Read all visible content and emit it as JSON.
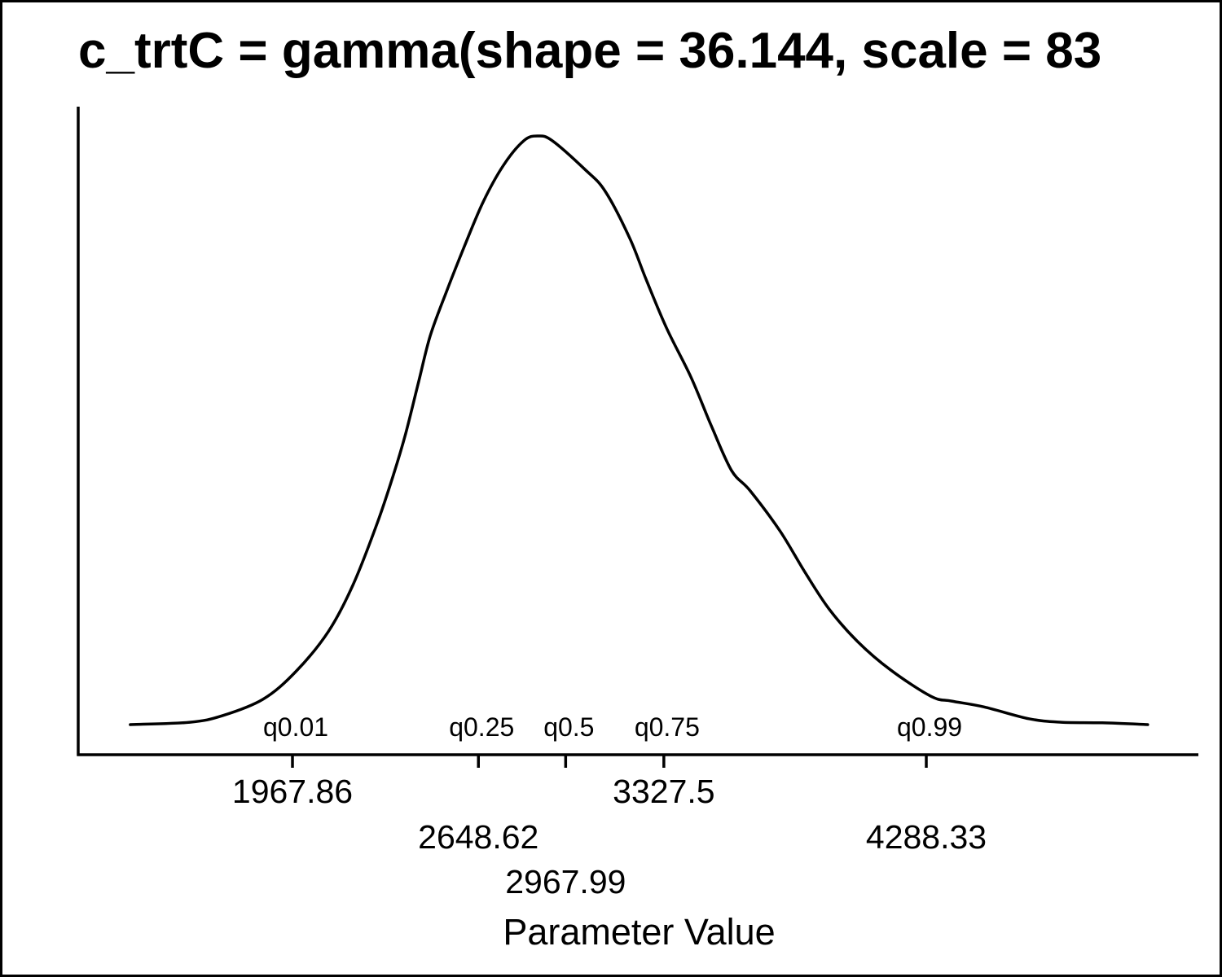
{
  "chart_data": {
    "type": "line",
    "title": "c_trtC = gamma(shape = 36.144, scale = 83",
    "xlabel": "Parameter Value",
    "ylabel": "",
    "xlim": [
      1183.4,
      5284.5
    ],
    "ylim": [
      -0.0512,
      1.0498
    ],
    "y_units": "relative density (peak = 1)",
    "grid": false,
    "legend": "none",
    "line_color": "#000000",
    "series": [
      {
        "name": "density",
        "x": [
          1374,
          1592,
          1711,
          1860,
          1980,
          2099,
          2189,
          2278,
          2338,
          2382,
          2427,
          2472,
          2532,
          2597,
          2666,
          2740,
          2815,
          2866,
          2919,
          3039,
          3113,
          3203,
          3262,
          3337,
          3426,
          3501,
          3575,
          3644,
          3754,
          3844,
          3933,
          4037,
          4157,
          4306,
          4381,
          4500,
          4664,
          4783,
          4933,
          5099
        ],
        "y": [
          0.0,
          0.004,
          0.015,
          0.043,
          0.09,
          0.158,
          0.237,
          0.342,
          0.425,
          0.494,
          0.577,
          0.66,
          0.736,
          0.812,
          0.888,
          0.95,
          0.992,
          1.0,
          0.992,
          0.943,
          0.906,
          0.826,
          0.757,
          0.674,
          0.591,
          0.508,
          0.432,
          0.397,
          0.328,
          0.259,
          0.196,
          0.141,
          0.093,
          0.048,
          0.04,
          0.03,
          0.01,
          0.004,
          0.003,
          0.0
        ]
      }
    ],
    "quantiles": [
      {
        "label": "q0.01",
        "value": 1967.86,
        "tick_label": "1967.86",
        "row": 0
      },
      {
        "label": "q0.25",
        "value": 2648.62,
        "tick_label": "2648.62",
        "row": 1
      },
      {
        "label": "q0.5",
        "value": 2967.99,
        "tick_label": "2967.99",
        "row": 2
      },
      {
        "label": "q0.75",
        "value": 3327.5,
        "tick_label": "3327.5",
        "row": 0
      },
      {
        "label": "q0.99",
        "value": 4288.33,
        "tick_label": "4288.33",
        "row": 1
      }
    ]
  }
}
